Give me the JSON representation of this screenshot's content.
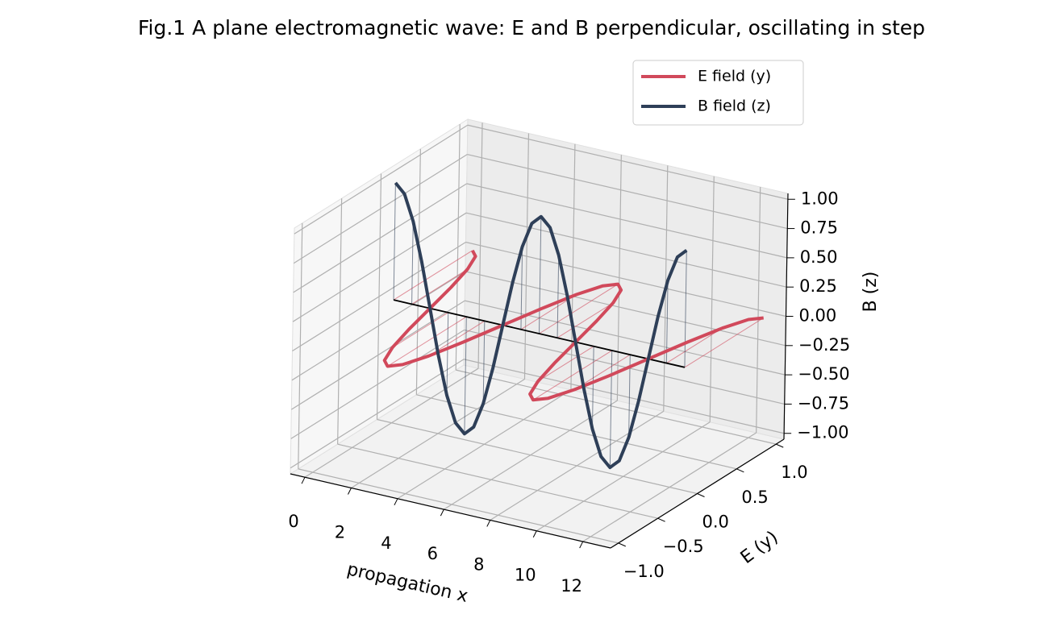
{
  "chart_data": {
    "type": "line3d",
    "title": "Fig.1 A plane electromagnetic wave: E and B perpendicular, oscillating in step",
    "xlabel": "propagation x",
    "ylabel": "E (y)",
    "zlabel": "B (z)",
    "x": [
      0,
      0.393,
      0.785,
      1.178,
      1.571,
      1.963,
      2.356,
      2.749,
      3.142,
      3.534,
      3.927,
      4.32,
      4.712,
      5.105,
      5.498,
      5.89,
      6.283,
      6.676,
      7.069,
      7.461,
      7.854,
      8.247,
      8.639,
      9.032,
      9.425,
      9.817,
      10.21,
      10.603,
      10.996,
      11.388,
      11.781,
      12.174,
      12.566
    ],
    "series": [
      {
        "name": "E field (y)",
        "color": "#d1495b",
        "axis": "y",
        "values": [
          1,
          0.924,
          0.707,
          0.383,
          0,
          -0.383,
          -0.707,
          -0.924,
          -1,
          -0.924,
          -0.707,
          -0.383,
          0,
          0.383,
          0.707,
          0.924,
          1,
          0.924,
          0.707,
          0.383,
          0,
          -0.383,
          -0.707,
          -0.924,
          -1,
          -0.924,
          -0.707,
          -0.383,
          0,
          0.383,
          0.707,
          0.924,
          1
        ]
      },
      {
        "name": "B field (z)",
        "color": "#2e3f58",
        "axis": "z",
        "values": [
          1,
          0.924,
          0.707,
          0.383,
          0,
          -0.383,
          -0.707,
          -0.924,
          -1,
          -0.924,
          -0.707,
          -0.383,
          0,
          0.383,
          0.707,
          0.924,
          1,
          0.924,
          0.707,
          0.383,
          0,
          -0.383,
          -0.707,
          -0.924,
          -1,
          -0.924,
          -0.707,
          -0.383,
          0,
          0.383,
          0.707,
          0.924,
          1
        ]
      }
    ],
    "xlim": [
      -0.628,
      13.195
    ],
    "ylim": [
      -1.1,
      1.1
    ],
    "zlim": [
      -1.05,
      1.05
    ],
    "xticks": [
      0,
      2,
      4,
      6,
      8,
      10,
      12
    ],
    "yticks": [
      {
        "value": -1,
        "label": "−1.0"
      },
      {
        "value": -0.5,
        "label": "−0.5"
      },
      {
        "value": 0,
        "label": "0.0"
      },
      {
        "value": 0.5,
        "label": "0.5"
      },
      {
        "value": 1,
        "label": "1.0"
      }
    ],
    "zticks": [
      {
        "value": -1,
        "label": "−1.00"
      },
      {
        "value": -0.75,
        "label": "−0.75"
      },
      {
        "value": -0.5,
        "label": "−0.50"
      },
      {
        "value": -0.25,
        "label": "−0.25"
      },
      {
        "value": 0,
        "label": "0.00"
      },
      {
        "value": 0.25,
        "label": "0.25"
      },
      {
        "value": 0.5,
        "label": "0.50"
      },
      {
        "value": 0.75,
        "label": "0.75"
      },
      {
        "value": 1,
        "label": "1.00"
      }
    ],
    "grid": true,
    "legend": "upper right"
  }
}
